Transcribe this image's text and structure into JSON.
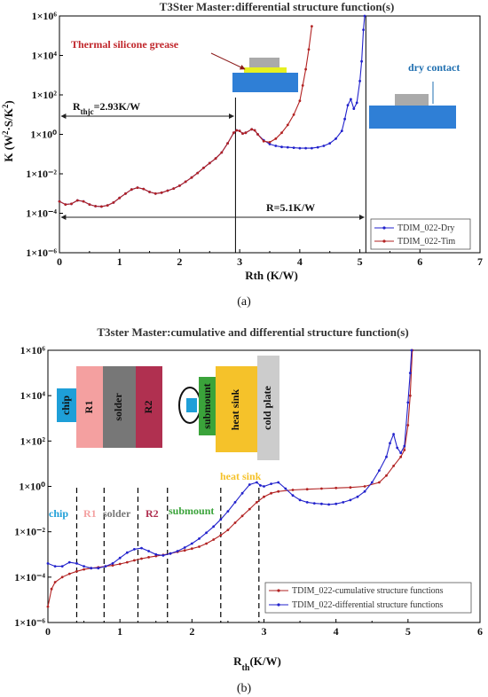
{
  "colors": {
    "blue": "#2222cc",
    "red": "#b22222",
    "chip": "#1e9fd8",
    "r1": "#f4a0a0",
    "solder": "#777777",
    "r2": "#b03050",
    "submount": "#3aa33a",
    "heatsink": "#f5c22a",
    "coldplate": "#cccccc",
    "package": "#2f7fd6",
    "die": "#aaaaaa",
    "grease": "#e6f020"
  },
  "chart_data": [
    {
      "type": "line",
      "title": "T3Ster Master:differential structure function(s)",
      "xlabel": "Rth (K/W)",
      "ylabel": "K (W²·S/K²)",
      "xlim": [
        0,
        7
      ],
      "ylim": [
        1e-06,
        1000000.0
      ],
      "yscale": "log",
      "x_ticks": [
        "0",
        "1",
        "2",
        "3",
        "4",
        "5",
        "6",
        "7"
      ],
      "y_ticks": [
        "1×10⁻⁶",
        "1×10⁻⁴",
        "1×10⁻²",
        "1×10⁰",
        "1×10²",
        "1×10⁴",
        "1×10⁶"
      ],
      "legend_position": "bottom-right",
      "series": [
        {
          "name": "TDIM_022-Dry",
          "color": "blue",
          "points": [
            [
              0,
              0.0004
            ],
            [
              0.1,
              0.00028
            ],
            [
              0.2,
              0.0003
            ],
            [
              0.3,
              0.00045
            ],
            [
              0.4,
              0.0004
            ],
            [
              0.5,
              0.00028
            ],
            [
              0.6,
              0.00023
            ],
            [
              0.7,
              0.00022
            ],
            [
              0.8,
              0.00025
            ],
            [
              0.9,
              0.00035
            ],
            [
              1.0,
              0.0006
            ],
            [
              1.1,
              0.001
            ],
            [
              1.2,
              0.0016
            ],
            [
              1.3,
              0.002
            ],
            [
              1.4,
              0.0017
            ],
            [
              1.5,
              0.0012
            ],
            [
              1.6,
              0.001
            ],
            [
              1.7,
              0.0011
            ],
            [
              1.8,
              0.0014
            ],
            [
              1.9,
              0.0018
            ],
            [
              2.0,
              0.0025
            ],
            [
              2.1,
              0.004
            ],
            [
              2.2,
              0.0065
            ],
            [
              2.3,
              0.011
            ],
            [
              2.4,
              0.02
            ],
            [
              2.5,
              0.035
            ],
            [
              2.6,
              0.06
            ],
            [
              2.7,
              0.12
            ],
            [
              2.8,
              0.35
            ],
            [
              2.9,
              1.2
            ],
            [
              2.95,
              1.6
            ],
            [
              3.0,
              1.5
            ],
            [
              3.05,
              1.1
            ],
            [
              3.1,
              1.2
            ],
            [
              3.2,
              1.8
            ],
            [
              3.25,
              1.6
            ],
            [
              3.3,
              1.0
            ],
            [
              3.4,
              0.5
            ],
            [
              3.5,
              0.32
            ],
            [
              3.6,
              0.26
            ],
            [
              3.7,
              0.23
            ],
            [
              3.8,
              0.22
            ],
            [
              3.9,
              0.21
            ],
            [
              4.0,
              0.2
            ],
            [
              4.1,
              0.2
            ],
            [
              4.2,
              0.2
            ],
            [
              4.3,
              0.22
            ],
            [
              4.4,
              0.26
            ],
            [
              4.5,
              0.35
            ],
            [
              4.6,
              0.6
            ],
            [
              4.7,
              1.5
            ],
            [
              4.75,
              6
            ],
            [
              4.8,
              30
            ],
            [
              4.85,
              60
            ],
            [
              4.9,
              20
            ],
            [
              4.95,
              40
            ],
            [
              5.0,
              500
            ],
            [
              5.03,
              5000
            ],
            [
              5.06,
              200000
            ],
            [
              5.08,
              1000000
            ]
          ]
        },
        {
          "name": "TDIM_022-Tim",
          "color": "red",
          "points": [
            [
              0,
              0.0004
            ],
            [
              0.1,
              0.00028
            ],
            [
              0.2,
              0.0003
            ],
            [
              0.3,
              0.00045
            ],
            [
              0.4,
              0.0004
            ],
            [
              0.5,
              0.00028
            ],
            [
              0.6,
              0.00023
            ],
            [
              0.7,
              0.00022
            ],
            [
              0.8,
              0.00025
            ],
            [
              0.9,
              0.00035
            ],
            [
              1.0,
              0.0006
            ],
            [
              1.1,
              0.001
            ],
            [
              1.2,
              0.0016
            ],
            [
              1.3,
              0.002
            ],
            [
              1.4,
              0.0017
            ],
            [
              1.5,
              0.0012
            ],
            [
              1.6,
              0.001
            ],
            [
              1.7,
              0.0011
            ],
            [
              1.8,
              0.0014
            ],
            [
              1.9,
              0.0018
            ],
            [
              2.0,
              0.0025
            ],
            [
              2.1,
              0.004
            ],
            [
              2.2,
              0.0065
            ],
            [
              2.3,
              0.011
            ],
            [
              2.4,
              0.02
            ],
            [
              2.5,
              0.035
            ],
            [
              2.6,
              0.06
            ],
            [
              2.7,
              0.12
            ],
            [
              2.8,
              0.35
            ],
            [
              2.9,
              1.2
            ],
            [
              2.95,
              1.6
            ],
            [
              3.0,
              1.5
            ],
            [
              3.05,
              1.1
            ],
            [
              3.1,
              1.2
            ],
            [
              3.2,
              1.8
            ],
            [
              3.25,
              1.6
            ],
            [
              3.3,
              1.0
            ],
            [
              3.4,
              0.45
            ],
            [
              3.5,
              0.4
            ],
            [
              3.6,
              0.6
            ],
            [
              3.7,
              1.2
            ],
            [
              3.8,
              3
            ],
            [
              3.9,
              10
            ],
            [
              4.0,
              50
            ],
            [
              4.05,
              300
            ],
            [
              4.1,
              2000
            ],
            [
              4.15,
              20000
            ],
            [
              4.2,
              300000
            ]
          ]
        }
      ],
      "annotations": {
        "rthjc": "R_thjc=2.93K/W",
        "rthjc_main": "R",
        "rthjc_sub": "thjc",
        "rthjc_val": "=2.93K/W",
        "rthjc_value": 2.93,
        "r_total": "R=5.1K/W",
        "r_total_value": 5.1,
        "grease_label": "Thermal silicone grease",
        "dry_label": "dry contact"
      },
      "caption": "(a)"
    },
    {
      "type": "line",
      "title": "T3ster Master:cumulative and differential structure function(s)",
      "xlabel": "R_th(K/W)",
      "xlabel_main": "R",
      "xlabel_sub": "th",
      "xlabel_unit": "(K/W)",
      "xlim": [
        0,
        6
      ],
      "ylim": [
        1e-06,
        1000000.0
      ],
      "yscale": "log",
      "x_ticks": [
        "0",
        "1",
        "2",
        "3",
        "4",
        "5",
        "6"
      ],
      "y_ticks": [
        "1×10⁻⁶",
        "1×10⁻⁴",
        "1×10⁻²",
        "1×10⁰",
        "1×10²",
        "1×10⁴",
        "1×10⁶"
      ],
      "legend_position": "bottom-right",
      "series": [
        {
          "name": "TDIM_022-cumulative structure functions",
          "color": "red",
          "points": [
            [
              0,
              5e-06
            ],
            [
              0.05,
              3e-05
            ],
            [
              0.1,
              6e-05
            ],
            [
              0.2,
              0.0001
            ],
            [
              0.3,
              0.00014
            ],
            [
              0.4,
              0.00018
            ],
            [
              0.5,
              0.00022
            ],
            [
              0.6,
              0.00025
            ],
            [
              0.7,
              0.00027
            ],
            [
              0.8,
              0.0003
            ],
            [
              0.9,
              0.00033
            ],
            [
              1.0,
              0.00038
            ],
            [
              1.1,
              0.00045
            ],
            [
              1.2,
              0.00055
            ],
            [
              1.3,
              0.00065
            ],
            [
              1.4,
              0.00075
            ],
            [
              1.5,
              0.00085
            ],
            [
              1.6,
              0.00095
            ],
            [
              1.7,
              0.0011
            ],
            [
              1.8,
              0.0013
            ],
            [
              1.9,
              0.0015
            ],
            [
              2.0,
              0.0018
            ],
            [
              2.1,
              0.0022
            ],
            [
              2.2,
              0.003
            ],
            [
              2.3,
              0.0045
            ],
            [
              2.4,
              0.007
            ],
            [
              2.5,
              0.012
            ],
            [
              2.6,
              0.025
            ],
            [
              2.7,
              0.05
            ],
            [
              2.8,
              0.1
            ],
            [
              2.9,
              0.2
            ],
            [
              3.0,
              0.35
            ],
            [
              3.1,
              0.5
            ],
            [
              3.2,
              0.6
            ],
            [
              3.4,
              0.7
            ],
            [
              3.6,
              0.75
            ],
            [
              3.8,
              0.8
            ],
            [
              4.0,
              0.85
            ],
            [
              4.2,
              0.9
            ],
            [
              4.4,
              1.0
            ],
            [
              4.6,
              1.5
            ],
            [
              4.7,
              3
            ],
            [
              4.8,
              8
            ],
            [
              4.9,
              20
            ],
            [
              4.95,
              40
            ],
            [
              5.0,
              500
            ],
            [
              5.03,
              10000
            ],
            [
              5.06,
              1000000
            ]
          ]
        },
        {
          "name": "TDIM_022-differential structure functions",
          "color": "blue",
          "points": [
            [
              0,
              0.0004
            ],
            [
              0.1,
              0.0003
            ],
            [
              0.2,
              0.0003
            ],
            [
              0.3,
              0.00045
            ],
            [
              0.4,
              0.0004
            ],
            [
              0.5,
              0.0003
            ],
            [
              0.6,
              0.00025
            ],
            [
              0.7,
              0.00025
            ],
            [
              0.8,
              0.0003
            ],
            [
              0.9,
              0.0004
            ],
            [
              1.0,
              0.0007
            ],
            [
              1.1,
              0.0012
            ],
            [
              1.2,
              0.0017
            ],
            [
              1.3,
              0.0019
            ],
            [
              1.4,
              0.0014
            ],
            [
              1.5,
              0.001
            ],
            [
              1.6,
              0.0009
            ],
            [
              1.7,
              0.0011
            ],
            [
              1.8,
              0.0014
            ],
            [
              1.9,
              0.002
            ],
            [
              2.0,
              0.003
            ],
            [
              2.1,
              0.005
            ],
            [
              2.2,
              0.009
            ],
            [
              2.3,
              0.017
            ],
            [
              2.4,
              0.035
            ],
            [
              2.5,
              0.08
            ],
            [
              2.6,
              0.2
            ],
            [
              2.7,
              0.5
            ],
            [
              2.8,
              1.2
            ],
            [
              2.9,
              1.5
            ],
            [
              2.95,
              1.1
            ],
            [
              3.0,
              1.0
            ],
            [
              3.1,
              1.3
            ],
            [
              3.2,
              1.5
            ],
            [
              3.3,
              0.8
            ],
            [
              3.4,
              0.4
            ],
            [
              3.5,
              0.25
            ],
            [
              3.6,
              0.2
            ],
            [
              3.7,
              0.18
            ],
            [
              3.8,
              0.17
            ],
            [
              3.9,
              0.16
            ],
            [
              4.0,
              0.17
            ],
            [
              4.1,
              0.2
            ],
            [
              4.2,
              0.25
            ],
            [
              4.3,
              0.35
            ],
            [
              4.4,
              0.6
            ],
            [
              4.5,
              1.5
            ],
            [
              4.6,
              5
            ],
            [
              4.7,
              20
            ],
            [
              4.75,
              80
            ],
            [
              4.8,
              200
            ],
            [
              4.85,
              50
            ],
            [
              4.9,
              30
            ],
            [
              4.95,
              60
            ],
            [
              5.0,
              5000
            ],
            [
              5.03,
              100000
            ],
            [
              5.05,
              1000000
            ]
          ]
        }
      ],
      "regions": [
        {
          "label": "chip",
          "color": "chip"
        },
        {
          "label": "R1",
          "color": "r1"
        },
        {
          "label": "solder",
          "color": "solder"
        },
        {
          "label": "R2",
          "color": "r2"
        },
        {
          "label": "submount",
          "color": "submount"
        },
        {
          "label": "heat sink",
          "color": "heatsink"
        }
      ],
      "boundaries": [
        0.4,
        0.78,
        1.25,
        1.66,
        2.4,
        2.93
      ],
      "stack_labels": {
        "chip": "chip",
        "r1": "R1",
        "solder": "solder",
        "r2": "R2",
        "submount": "submount",
        "heatsink": "heat sink",
        "coldplate": "cold plate"
      },
      "caption": "(b)"
    }
  ]
}
